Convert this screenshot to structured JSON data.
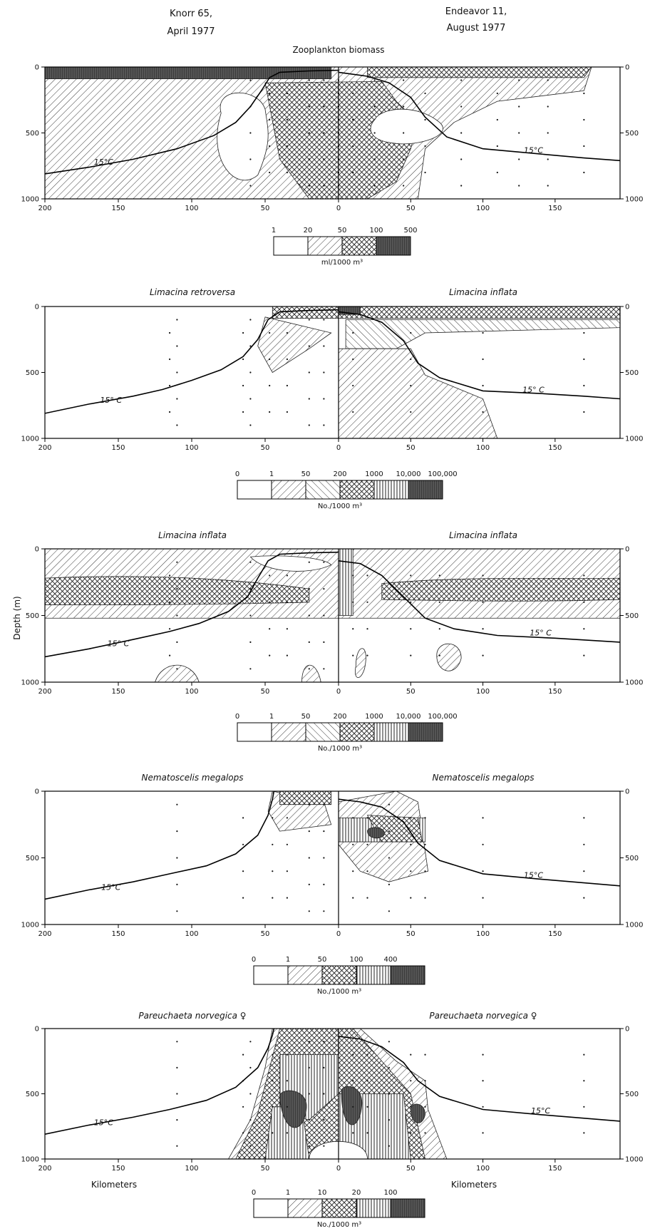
{
  "header": {
    "left_line1": "Knorr 65,",
    "left_line2": "April 1977",
    "right_line1": "Endeavor 11,",
    "right_line2": "August 1977"
  },
  "y_axis_label": "Depth (m)",
  "x_axis_label": "Kilometers",
  "isotherm_label": "15°C",
  "isotherm_label_spaced": "15° C",
  "chart_data": [
    {
      "type": "heatmap",
      "title": "Zooplankton biomass",
      "title_italic": false,
      "left_title": "",
      "right_title": "",
      "xlabel": "",
      "ylabel": "",
      "xlim_left": [
        200,
        0
      ],
      "xlim_right": [
        0,
        195
      ],
      "ylim": [
        0,
        1000
      ],
      "x_ticks_left": [
        200,
        150,
        100,
        50,
        0
      ],
      "x_ticks_right": [
        50,
        100,
        150
      ],
      "y_ticks": [
        0,
        500,
        1000
      ],
      "legend": {
        "breaks": [
          "1",
          "20",
          "50",
          "100",
          "500"
        ],
        "patterns": [
          "blank",
          "diag",
          "cross",
          "dark"
        ],
        "unit": "ml/1000 m³"
      },
      "isotherm_left": [
        [
          200,
          810
        ],
        [
          170,
          760
        ],
        [
          140,
          700
        ],
        [
          110,
          620
        ],
        [
          85,
          520
        ],
        [
          70,
          420
        ],
        [
          60,
          300
        ],
        [
          52,
          170
        ],
        [
          47,
          80
        ],
        [
          40,
          40
        ],
        [
          20,
          30
        ],
        [
          0,
          25
        ]
      ],
      "isotherm_right": [
        [
          0,
          40
        ],
        [
          20,
          70
        ],
        [
          35,
          120
        ],
        [
          50,
          230
        ],
        [
          60,
          380
        ],
        [
          75,
          530
        ],
        [
          100,
          620
        ],
        [
          140,
          660
        ],
        [
          170,
          690
        ],
        [
          195,
          710
        ]
      ],
      "isotherm_label_pos": {
        "left": [
          160,
          740
        ],
        "right": [
          135,
          650
        ]
      },
      "stations_left": [
        0,
        10,
        20,
        35,
        47,
        60
      ],
      "stations_right": [
        0,
        10,
        25,
        45,
        60,
        85,
        110,
        125,
        145,
        170
      ]
    },
    {
      "type": "heatmap",
      "title": "",
      "left_title": "Limacina retroversa",
      "right_title": "Limacina inflata",
      "xlabel": "",
      "ylabel": "",
      "xlim_left": [
        200,
        0
      ],
      "xlim_right": [
        0,
        195
      ],
      "ylim": [
        0,
        1000
      ],
      "x_ticks_left": [
        200,
        150,
        100,
        50,
        0
      ],
      "x_ticks_right": [
        50,
        100,
        150
      ],
      "y_ticks": [
        0,
        500,
        1000
      ],
      "legend": {
        "breaks": [
          "0",
          "1",
          "50",
          "200",
          "1000",
          "10,000",
          "100,000"
        ],
        "patterns": [
          "blank",
          "diag",
          "diag2",
          "cross",
          "vert",
          "dark"
        ],
        "unit": "No./1000 m³"
      },
      "isotherm_left": [
        [
          200,
          810
        ],
        [
          170,
          740
        ],
        [
          140,
          680
        ],
        [
          120,
          630
        ],
        [
          100,
          560
        ],
        [
          80,
          480
        ],
        [
          65,
          380
        ],
        [
          55,
          250
        ],
        [
          48,
          100
        ],
        [
          40,
          40
        ],
        [
          20,
          30
        ],
        [
          0,
          25
        ]
      ],
      "isotherm_right": [
        [
          0,
          40
        ],
        [
          15,
          60
        ],
        [
          30,
          120
        ],
        [
          45,
          260
        ],
        [
          55,
          430
        ],
        [
          70,
          540
        ],
        [
          100,
          640
        ],
        [
          140,
          660
        ],
        [
          170,
          680
        ],
        [
          195,
          700
        ]
      ],
      "isotherm_label_pos": {
        "left": [
          155,
          730
        ],
        "right": [
          135,
          650
        ]
      },
      "stations_left": [
        10,
        20,
        35,
        47,
        60,
        65,
        110,
        115
      ],
      "stations_right": [
        10,
        50,
        100,
        170
      ]
    },
    {
      "type": "heatmap",
      "title": "",
      "left_title": "Limacina inflata",
      "right_title": "Limacina inflata",
      "xlabel": "",
      "ylabel": "Depth (m)",
      "xlim_left": [
        200,
        0
      ],
      "xlim_right": [
        0,
        195
      ],
      "ylim": [
        0,
        1000
      ],
      "x_ticks_left": [
        200,
        150,
        100,
        50,
        0
      ],
      "x_ticks_right": [
        50,
        100,
        150
      ],
      "y_ticks": [
        0,
        500,
        1000
      ],
      "legend": {
        "breaks": [
          "0",
          "1",
          "50",
          "200",
          "1000",
          "10,000",
          "100,000"
        ],
        "patterns": [
          "blank",
          "diag",
          "diag2",
          "cross",
          "vert",
          "dark"
        ],
        "unit": "No./1000 m³"
      },
      "isotherm_left": [
        [
          200,
          810
        ],
        [
          170,
          750
        ],
        [
          140,
          680
        ],
        [
          115,
          620
        ],
        [
          95,
          560
        ],
        [
          75,
          470
        ],
        [
          62,
          360
        ],
        [
          55,
          220
        ],
        [
          48,
          90
        ],
        [
          40,
          40
        ],
        [
          20,
          30
        ],
        [
          0,
          25
        ]
      ],
      "isotherm_right": [
        [
          0,
          90
        ],
        [
          15,
          110
        ],
        [
          30,
          200
        ],
        [
          45,
          360
        ],
        [
          60,
          520
        ],
        [
          80,
          600
        ],
        [
          110,
          650
        ],
        [
          150,
          670
        ],
        [
          195,
          700
        ]
      ],
      "isotherm_label_pos": {
        "left": [
          150,
          730
        ],
        "right": [
          140,
          650
        ]
      },
      "stations_left": [
        10,
        20,
        35,
        47,
        60,
        110,
        115
      ],
      "stations_right": [
        10,
        20,
        50,
        70,
        100,
        170
      ]
    },
    {
      "type": "heatmap",
      "title": "",
      "left_title": "Nematoscelis megalops",
      "right_title": "Nematoscelis megalops",
      "xlabel": "",
      "ylabel": "",
      "xlim_left": [
        200,
        0
      ],
      "xlim_right": [
        0,
        195
      ],
      "ylim": [
        0,
        1000
      ],
      "x_ticks_left": [
        200,
        150,
        100,
        50,
        0
      ],
      "x_ticks_right": [
        50,
        100,
        150
      ],
      "y_ticks": [
        0,
        500,
        1000
      ],
      "legend": {
        "breaks": [
          "0",
          "1",
          "50",
          "100",
          "400"
        ],
        "patterns": [
          "blank",
          "diag",
          "cross",
          "vert",
          "dark"
        ],
        "unit": "No./1000 m³"
      },
      "isotherm_left": [
        [
          200,
          810
        ],
        [
          170,
          740
        ],
        [
          140,
          680
        ],
        [
          115,
          620
        ],
        [
          90,
          560
        ],
        [
          70,
          470
        ],
        [
          55,
          330
        ],
        [
          48,
          180
        ],
        [
          45,
          60
        ],
        [
          44,
          0
        ]
      ],
      "isotherm_right": [
        [
          0,
          60
        ],
        [
          15,
          80
        ],
        [
          30,
          120
        ],
        [
          45,
          230
        ],
        [
          55,
          390
        ],
        [
          70,
          520
        ],
        [
          100,
          620
        ],
        [
          140,
          660
        ],
        [
          195,
          710
        ]
      ],
      "isotherm_label_pos": {
        "left": [
          155,
          740
        ],
        "right": [
          135,
          650
        ]
      },
      "stations_left": [
        10,
        20,
        35,
        45,
        65,
        110
      ],
      "stations_right": [
        10,
        20,
        35,
        50,
        60,
        100,
        170
      ]
    },
    {
      "type": "heatmap",
      "title": "",
      "left_title": "Pareuchaeta norvegica ♀",
      "right_title": "Pareuchaeta norvegica ♀",
      "xlabel": "Kilometers",
      "ylabel": "",
      "xlim_left": [
        200,
        0
      ],
      "xlim_right": [
        0,
        195
      ],
      "ylim": [
        0,
        1000
      ],
      "x_ticks_left": [
        200,
        150,
        100,
        50,
        0
      ],
      "x_ticks_right": [
        50,
        100,
        150
      ],
      "y_ticks": [
        0,
        500,
        1000
      ],
      "legend": {
        "breaks": [
          "0",
          "1",
          "10",
          "20",
          "100"
        ],
        "patterns": [
          "blank",
          "diag",
          "cross",
          "vert",
          "dark"
        ],
        "unit": "No./1000 m³"
      },
      "isotherm_left": [
        [
          200,
          810
        ],
        [
          170,
          740
        ],
        [
          140,
          680
        ],
        [
          115,
          620
        ],
        [
          90,
          550
        ],
        [
          70,
          450
        ],
        [
          55,
          300
        ],
        [
          48,
          150
        ],
        [
          45,
          50
        ],
        [
          44,
          0
        ]
      ],
      "isotherm_right": [
        [
          0,
          60
        ],
        [
          15,
          80
        ],
        [
          30,
          140
        ],
        [
          45,
          260
        ],
        [
          55,
          400
        ],
        [
          70,
          520
        ],
        [
          100,
          620
        ],
        [
          140,
          660
        ],
        [
          195,
          710
        ]
      ],
      "isotherm_label_pos": {
        "left": [
          160,
          740
        ],
        "right": [
          140,
          650
        ]
      },
      "stations_left": [
        10,
        20,
        35,
        45,
        60,
        65,
        110
      ],
      "stations_right": [
        10,
        20,
        35,
        50,
        60,
        100,
        170
      ]
    }
  ]
}
